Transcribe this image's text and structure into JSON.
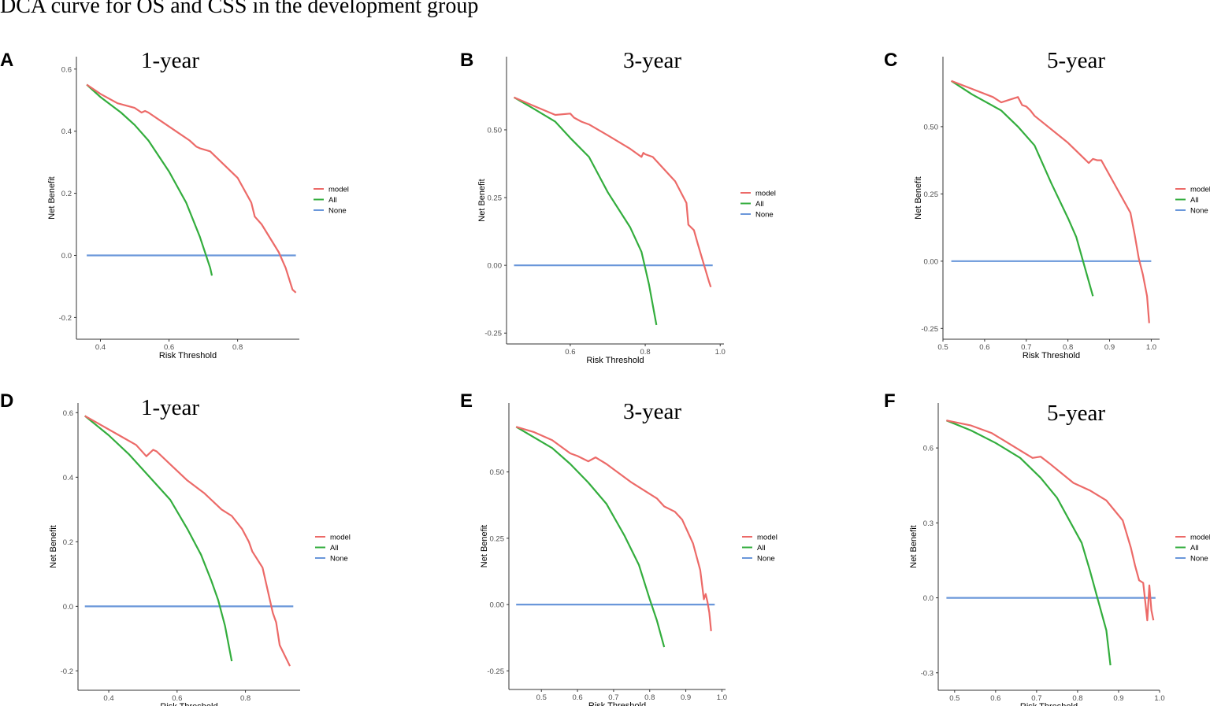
{
  "figure_title": "DCA curve for OS and CSS in the development group",
  "colors": {
    "model": "#ec6a68",
    "All": "#33ad3d",
    "None": "#6a97da",
    "axis": "#333333",
    "text": "#4d4d4d"
  },
  "chart_data": [
    {
      "panel": "A",
      "title": "1-year",
      "type": "line",
      "xlabel": "Risk Threshold",
      "ylabel": "Net Benefit",
      "xlim": [
        0.33,
        0.98
      ],
      "ylim": [
        -0.27,
        0.64
      ],
      "xticks": [
        0.4,
        0.6,
        0.8
      ],
      "xtick_labels": [
        "0.4",
        "0.6",
        "0.8"
      ],
      "yticks": [
        -0.2,
        0.0,
        0.2,
        0.4,
        0.6
      ],
      "ytick_labels": [
        "-0.2",
        "0.0",
        "0.2",
        "0.4",
        "0.6"
      ],
      "legend": [
        "model",
        "All",
        "None"
      ],
      "series": [
        {
          "name": "model",
          "x": [
            0.36,
            0.4,
            0.45,
            0.5,
            0.52,
            0.53,
            0.54,
            0.58,
            0.62,
            0.66,
            0.68,
            0.69,
            0.72,
            0.8,
            0.84,
            0.85,
            0.87,
            0.92,
            0.94,
            0.96,
            0.97
          ],
          "y": [
            0.55,
            0.52,
            0.49,
            0.475,
            0.46,
            0.465,
            0.46,
            0.43,
            0.4,
            0.37,
            0.35,
            0.345,
            0.335,
            0.25,
            0.17,
            0.125,
            0.1,
            0.01,
            -0.04,
            -0.11,
            -0.12
          ]
        },
        {
          "name": "All",
          "x": [
            0.36,
            0.4,
            0.46,
            0.5,
            0.54,
            0.6,
            0.65,
            0.69,
            0.72,
            0.725
          ],
          "y": [
            0.55,
            0.51,
            0.46,
            0.42,
            0.37,
            0.27,
            0.17,
            0.06,
            -0.04,
            -0.065
          ]
        },
        {
          "name": "None",
          "x": [
            0.36,
            0.97
          ],
          "y": [
            0.0,
            0.0
          ]
        }
      ]
    },
    {
      "panel": "B",
      "title": "3-year",
      "type": "line",
      "xlabel": "Risk Threshold",
      "ylabel": "Net Benefit",
      "xlim": [
        0.43,
        1.01
      ],
      "ylim": [
        -0.29,
        0.77
      ],
      "xticks": [
        0.6,
        0.8,
        1.0
      ],
      "xtick_labels": [
        "0.6",
        "0.8",
        "1.0"
      ],
      "yticks": [
        -0.25,
        0.0,
        0.25,
        0.5
      ],
      "ytick_labels": [
        "-0.25",
        "0.00",
        "0.25",
        "0.50"
      ],
      "legend": [
        "model",
        "All",
        "None"
      ],
      "series": [
        {
          "name": "model",
          "x": [
            0.45,
            0.5,
            0.56,
            0.6,
            0.61,
            0.63,
            0.65,
            0.7,
            0.76,
            0.79,
            0.795,
            0.8,
            0.82,
            0.88,
            0.91,
            0.915,
            0.93,
            0.94,
            0.97,
            0.975
          ],
          "y": [
            0.62,
            0.59,
            0.555,
            0.56,
            0.545,
            0.53,
            0.52,
            0.48,
            0.43,
            0.4,
            0.415,
            0.41,
            0.4,
            0.31,
            0.23,
            0.15,
            0.13,
            0.08,
            -0.06,
            -0.08
          ]
        },
        {
          "name": "All",
          "x": [
            0.45,
            0.5,
            0.56,
            0.6,
            0.65,
            0.7,
            0.76,
            0.79,
            0.8,
            0.81,
            0.83
          ],
          "y": [
            0.62,
            0.58,
            0.53,
            0.47,
            0.4,
            0.27,
            0.14,
            0.05,
            -0.01,
            -0.07,
            -0.22
          ]
        },
        {
          "name": "None",
          "x": [
            0.45,
            0.98
          ],
          "y": [
            0.0,
            0.0
          ]
        }
      ]
    },
    {
      "panel": "C",
      "title": "5-year",
      "type": "line",
      "xlabel": "Risk Threshold",
      "ylabel": "Net Benefit",
      "xlim": [
        0.5,
        1.02
      ],
      "ylim": [
        -0.29,
        0.76
      ],
      "xticks": [
        0.5,
        0.6,
        0.7,
        0.8,
        0.9,
        1.0
      ],
      "xtick_labels": [
        "0.5",
        "0.6",
        "0.7",
        "0.8",
        "0.9",
        "1.0"
      ],
      "yticks": [
        -0.25,
        0.0,
        0.25,
        0.5
      ],
      "ytick_labels": [
        "-0.25",
        "0.00",
        "0.25",
        "0.50"
      ],
      "legend": [
        "model",
        "All",
        "None"
      ],
      "series": [
        {
          "name": "model",
          "x": [
            0.52,
            0.57,
            0.62,
            0.64,
            0.66,
            0.68,
            0.69,
            0.7,
            0.71,
            0.72,
            0.8,
            0.84,
            0.85,
            0.86,
            0.87,
            0.88,
            0.95,
            0.96,
            0.97,
            0.98,
            0.99,
            0.995
          ],
          "y": [
            0.67,
            0.64,
            0.61,
            0.59,
            0.6,
            0.61,
            0.58,
            0.575,
            0.56,
            0.54,
            0.44,
            0.38,
            0.365,
            0.38,
            0.375,
            0.375,
            0.18,
            0.1,
            0.01,
            -0.05,
            -0.13,
            -0.23
          ]
        },
        {
          "name": "All",
          "x": [
            0.52,
            0.57,
            0.64,
            0.68,
            0.72,
            0.76,
            0.8,
            0.82,
            0.84,
            0.86
          ],
          "y": [
            0.67,
            0.62,
            0.56,
            0.5,
            0.43,
            0.29,
            0.16,
            0.09,
            -0.02,
            -0.13
          ]
        },
        {
          "name": "None",
          "x": [
            0.52,
            1.0
          ],
          "y": [
            0.0,
            0.0
          ]
        }
      ]
    },
    {
      "panel": "D",
      "title": "1-year",
      "type": "line",
      "xlabel": "Risk Threshold",
      "ylabel": "Net Benefit",
      "xlim": [
        0.31,
        0.96
      ],
      "ylim": [
        -0.26,
        0.63
      ],
      "xticks": [
        0.4,
        0.6,
        0.8
      ],
      "xtick_labels": [
        "0.4",
        "0.6",
        "0.8"
      ],
      "yticks": [
        -0.2,
        0.0,
        0.2,
        0.4,
        0.6
      ],
      "ytick_labels": [
        "-0.2",
        "0.0",
        "0.2",
        "0.4",
        "0.6"
      ],
      "legend": [
        "model",
        "All",
        "None"
      ],
      "series": [
        {
          "name": "model",
          "x": [
            0.33,
            0.38,
            0.43,
            0.48,
            0.51,
            0.53,
            0.54,
            0.58,
            0.63,
            0.68,
            0.7,
            0.73,
            0.76,
            0.79,
            0.81,
            0.82,
            0.85,
            0.88,
            0.89,
            0.9,
            0.93
          ],
          "y": [
            0.59,
            0.56,
            0.53,
            0.5,
            0.465,
            0.485,
            0.48,
            0.44,
            0.39,
            0.35,
            0.33,
            0.3,
            0.28,
            0.24,
            0.2,
            0.17,
            0.12,
            -0.02,
            -0.05,
            -0.12,
            -0.185
          ]
        },
        {
          "name": "All",
          "x": [
            0.33,
            0.4,
            0.46,
            0.52,
            0.58,
            0.63,
            0.67,
            0.7,
            0.72,
            0.74,
            0.76
          ],
          "y": [
            0.59,
            0.53,
            0.47,
            0.4,
            0.33,
            0.24,
            0.16,
            0.08,
            0.02,
            -0.06,
            -0.17
          ]
        },
        {
          "name": "None",
          "x": [
            0.33,
            0.94
          ],
          "y": [
            0.0,
            0.0
          ]
        }
      ]
    },
    {
      "panel": "E",
      "title": "3-year",
      "type": "line",
      "xlabel": "Risk Threshold",
      "ylabel": "Net Benefit",
      "xlim": [
        0.41,
        1.01
      ],
      "ylim": [
        -0.32,
        0.76
      ],
      "xticks": [
        0.5,
        0.6,
        0.7,
        0.8,
        0.9,
        1.0
      ],
      "xtick_labels": [
        "0.5",
        "0.6",
        "0.7",
        "0.8",
        "0.9",
        "1.0"
      ],
      "yticks": [
        -0.25,
        0.0,
        0.25,
        0.5
      ],
      "ytick_labels": [
        "-0.25",
        "0.00",
        "0.25",
        "0.50"
      ],
      "legend": [
        "model",
        "All",
        "None"
      ],
      "series": [
        {
          "name": "model",
          "x": [
            0.43,
            0.48,
            0.53,
            0.58,
            0.6,
            0.63,
            0.65,
            0.68,
            0.75,
            0.82,
            0.84,
            0.87,
            0.89,
            0.92,
            0.94,
            0.95,
            0.955,
            0.96,
            0.965,
            0.97
          ],
          "y": [
            0.67,
            0.65,
            0.62,
            0.57,
            0.56,
            0.54,
            0.555,
            0.53,
            0.46,
            0.4,
            0.37,
            0.35,
            0.32,
            0.23,
            0.13,
            0.02,
            0.04,
            0.01,
            -0.03,
            -0.1
          ]
        },
        {
          "name": "All",
          "x": [
            0.43,
            0.48,
            0.53,
            0.58,
            0.63,
            0.68,
            0.73,
            0.77,
            0.8,
            0.82,
            0.84
          ],
          "y": [
            0.67,
            0.63,
            0.59,
            0.53,
            0.46,
            0.38,
            0.26,
            0.15,
            0.02,
            -0.06,
            -0.16
          ]
        },
        {
          "name": "None",
          "x": [
            0.43,
            0.98
          ],
          "y": [
            0.0,
            0.0
          ]
        }
      ]
    },
    {
      "panel": "F",
      "title": "5-year",
      "type": "line",
      "xlabel": "Risk Threshold",
      "ylabel": "Net Benefit",
      "xlim": [
        0.46,
        1.0
      ],
      "ylim": [
        -0.37,
        0.78
      ],
      "xticks": [
        0.5,
        0.6,
        0.7,
        0.8,
        0.9,
        1.0
      ],
      "xtick_labels": [
        "0.5",
        "0.6",
        "0.7",
        "0.8",
        "0.9",
        "1.0"
      ],
      "yticks": [
        -0.3,
        0.0,
        0.3,
        0.6
      ],
      "ytick_labels": [
        "-0.3",
        "0.0",
        "0.3",
        "0.6"
      ],
      "legend": [
        "model",
        "All",
        "None"
      ],
      "series": [
        {
          "name": "model",
          "x": [
            0.48,
            0.54,
            0.59,
            0.62,
            0.66,
            0.69,
            0.71,
            0.73,
            0.79,
            0.83,
            0.85,
            0.87,
            0.89,
            0.91,
            0.93,
            0.94,
            0.95,
            0.96,
            0.97,
            0.975,
            0.98,
            0.985
          ],
          "y": [
            0.71,
            0.69,
            0.66,
            0.63,
            0.59,
            0.56,
            0.565,
            0.54,
            0.46,
            0.43,
            0.41,
            0.39,
            0.35,
            0.31,
            0.2,
            0.13,
            0.07,
            0.06,
            -0.09,
            0.05,
            -0.05,
            -0.09
          ]
        },
        {
          "name": "All",
          "x": [
            0.48,
            0.54,
            0.6,
            0.66,
            0.71,
            0.75,
            0.78,
            0.81,
            0.83,
            0.85,
            0.87,
            0.88
          ],
          "y": [
            0.71,
            0.67,
            0.62,
            0.56,
            0.48,
            0.4,
            0.31,
            0.22,
            0.11,
            -0.01,
            -0.13,
            -0.27
          ]
        },
        {
          "name": "None",
          "x": [
            0.48,
            0.99
          ],
          "y": [
            0.0,
            0.0
          ]
        }
      ]
    }
  ]
}
